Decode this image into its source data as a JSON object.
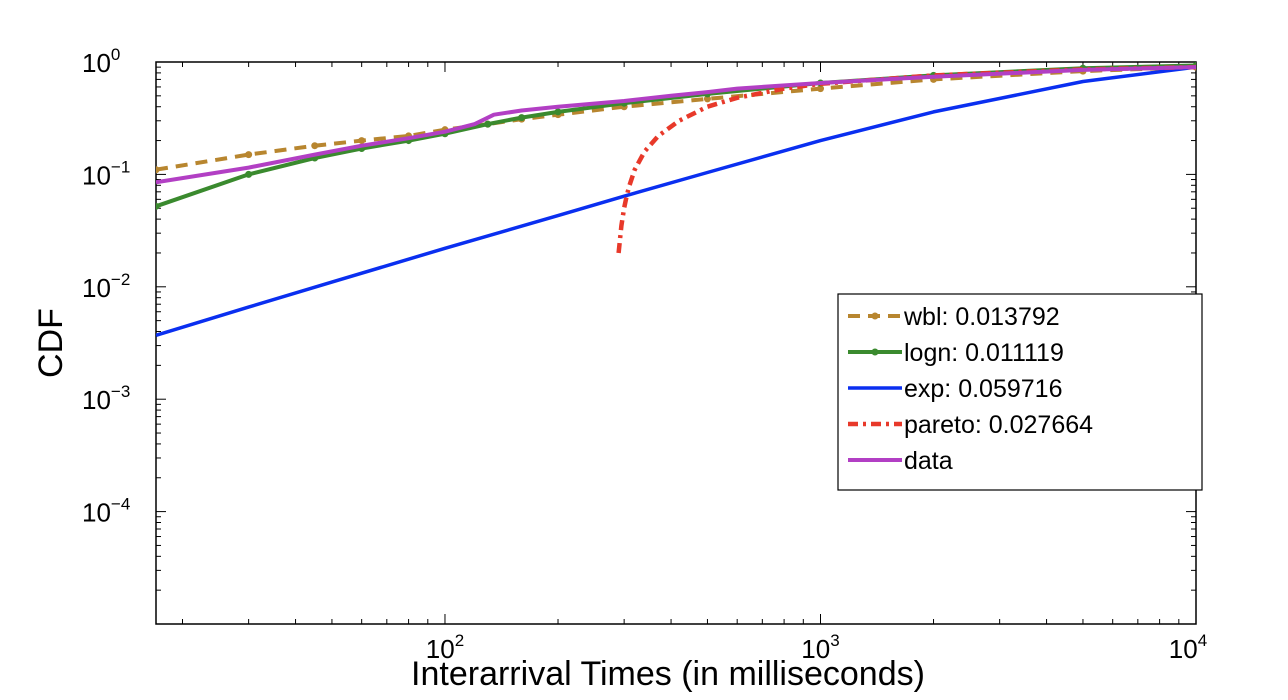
{
  "chart_data": {
    "type": "line",
    "title": "",
    "xlabel": "Interarrival Times (in milliseconds)",
    "ylabel": "CDF",
    "xscale": "log",
    "yscale": "log",
    "xlim": [
      17,
      10000
    ],
    "ylim": [
      1e-05,
      1
    ],
    "grid": false,
    "legend_position": "right",
    "x_ticks": [
      {
        "value": 100,
        "base": "10",
        "exp": "2"
      },
      {
        "value": 1000,
        "base": "10",
        "exp": "3"
      },
      {
        "value": 10000,
        "base": "10",
        "exp": "4"
      }
    ],
    "y_ticks": [
      {
        "value": 1,
        "base": "10",
        "exp": "0"
      },
      {
        "value": 0.1,
        "base": "10",
        "exp": "−1"
      },
      {
        "value": 0.01,
        "base": "10",
        "exp": "−2"
      },
      {
        "value": 0.001,
        "base": "10",
        "exp": "−3"
      },
      {
        "value": 0.0001,
        "base": "10",
        "exp": "−4"
      }
    ],
    "series": [
      {
        "name": "wbl: 0.013792",
        "color": "#b8862f",
        "style": "dashed-dots",
        "x": [
          17,
          30,
          45,
          60,
          80,
          100,
          130,
          160,
          200,
          300,
          500,
          1000,
          2000,
          5000,
          10000
        ],
        "y": [
          0.11,
          0.15,
          0.18,
          0.2,
          0.22,
          0.25,
          0.28,
          0.31,
          0.34,
          0.4,
          0.47,
          0.58,
          0.7,
          0.83,
          0.9
        ]
      },
      {
        "name": "logn: 0.011119",
        "color": "#3a8a2e",
        "style": "solid-dots",
        "x": [
          17,
          30,
          45,
          60,
          80,
          100,
          130,
          160,
          200,
          300,
          500,
          1000,
          2000,
          5000,
          10000
        ],
        "y": [
          0.052,
          0.1,
          0.14,
          0.17,
          0.2,
          0.23,
          0.28,
          0.32,
          0.36,
          0.43,
          0.52,
          0.65,
          0.76,
          0.88,
          0.93
        ]
      },
      {
        "name": "exp: 0.059716",
        "color": "#0a2ff0",
        "style": "solid",
        "x": [
          17,
          30,
          50,
          100,
          200,
          300,
          500,
          1000,
          2000,
          5000,
          10000
        ],
        "y": [
          0.0037,
          0.0066,
          0.011,
          0.022,
          0.043,
          0.064,
          0.104,
          0.2,
          0.36,
          0.67,
          0.9
        ]
      },
      {
        "name": "pareto: 0.027664",
        "color": "#e8392a",
        "style": "dashdot",
        "x": [
          290,
          295,
          300,
          305,
          310,
          320,
          340,
          370,
          420,
          500,
          600,
          800,
          1000,
          2000,
          5000,
          10000
        ],
        "y": [
          0.02,
          0.035,
          0.05,
          0.065,
          0.08,
          0.11,
          0.16,
          0.22,
          0.3,
          0.4,
          0.48,
          0.58,
          0.64,
          0.76,
          0.86,
          0.9
        ]
      },
      {
        "name": "data",
        "color": "#b23fc4",
        "style": "solid",
        "x": [
          17,
          30,
          45,
          60,
          80,
          100,
          120,
          135,
          160,
          200,
          300,
          400,
          500,
          600,
          1000,
          2000,
          5000,
          10000
        ],
        "y": [
          0.085,
          0.115,
          0.15,
          0.18,
          0.21,
          0.24,
          0.28,
          0.34,
          0.37,
          0.4,
          0.45,
          0.5,
          0.54,
          0.58,
          0.65,
          0.74,
          0.85,
          0.9
        ]
      }
    ]
  }
}
